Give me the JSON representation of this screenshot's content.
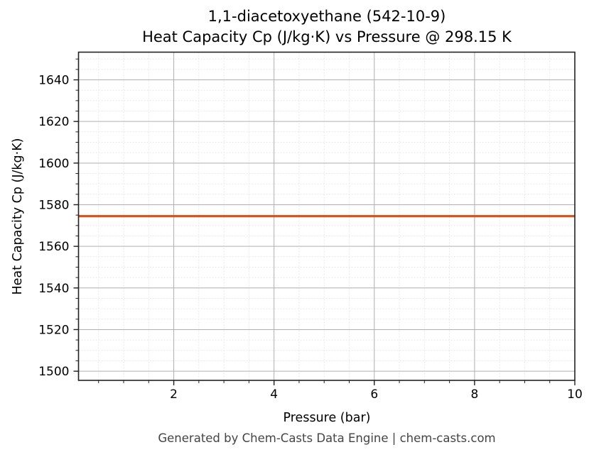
{
  "chart_data": {
    "type": "line",
    "title": "1,1-diacetoxyethane (542-10-9)",
    "subtitle": "Heat Capacity Cp (J/kg·K) vs Pressure @ 298.15 K",
    "xlabel": "Pressure (bar)",
    "ylabel": "Heat Capacity Cp (J/kg·K)",
    "xlim": [
      0.1,
      10
    ],
    "ylim": [
      1495.6,
      1653.3
    ],
    "x_ticks": [
      2,
      4,
      6,
      8,
      10
    ],
    "y_ticks": [
      1500,
      1520,
      1540,
      1560,
      1580,
      1600,
      1620,
      1640
    ],
    "grid": true,
    "minor_grid": true,
    "legend": null,
    "series": [
      {
        "name": "Cp",
        "color": "#d9541e",
        "x": [
          0.1,
          10
        ],
        "y": [
          1574.5,
          1574.5
        ]
      }
    ]
  },
  "labels": {
    "title_line1": "1,1-diacetoxyethane (542-10-9)",
    "title_line2": "Heat Capacity Cp (J/kg·K) vs Pressure @ 298.15 K",
    "xlabel": "Pressure (bar)",
    "ylabel": "Heat Capacity Cp (J/kg·K)",
    "footer": "Generated by Chem-Casts Data Engine | chem-casts.com",
    "xticks": [
      "2",
      "4",
      "6",
      "8",
      "10"
    ],
    "yticks": [
      "1500",
      "1520",
      "1540",
      "1560",
      "1580",
      "1600",
      "1620",
      "1640"
    ]
  }
}
